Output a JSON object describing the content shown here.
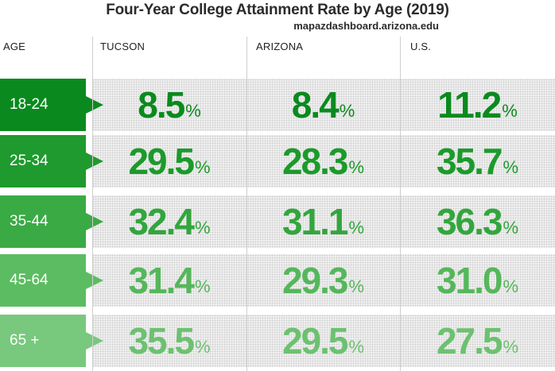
{
  "title": "Four-Year College Attainment Rate by Age (2019)",
  "source": "mapazdashboard.arizona.edu",
  "headers": {
    "age": "AGE",
    "tucson": "TUCSON",
    "arizona": "ARIZONA",
    "us": "U.S."
  },
  "colors": {
    "row_fill": [
      "#0a8a1e",
      "#1f9a2e",
      "#3aaa45",
      "#5cbc62",
      "#78c87d"
    ],
    "value_text": [
      "#0a8a1e",
      "#1c9a2b",
      "#32a63d",
      "#55b75b",
      "#6cc170"
    ]
  },
  "chart_data": {
    "type": "table",
    "title": "Four-Year College Attainment Rate by Age (2019)",
    "unit": "%",
    "columns": [
      "TUCSON",
      "ARIZONA",
      "U.S."
    ],
    "rows": [
      {
        "age": "18-24",
        "values": [
          "8.5",
          "8.4",
          "11.2"
        ]
      },
      {
        "age": "25-34",
        "values": [
          "29.5",
          "28.3",
          "35.7"
        ]
      },
      {
        "age": "35-44",
        "values": [
          "32.4",
          "31.1",
          "36.3"
        ]
      },
      {
        "age": "45-64",
        "values": [
          "31.4",
          "29.3",
          "31.0"
        ]
      },
      {
        "age": "65 +",
        "values": [
          "35.5",
          "29.5",
          "27.5"
        ]
      }
    ]
  }
}
